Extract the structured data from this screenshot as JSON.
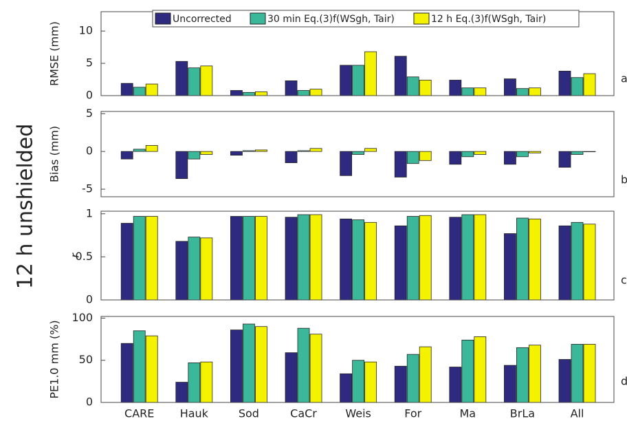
{
  "row_label": "12 h  unshielded",
  "chart_data": [
    {
      "type": "bar",
      "ylabel": "RMSE (mm)",
      "annotation": "a",
      "ylim": [
        0,
        13
      ],
      "yticks": [
        0,
        5,
        10
      ],
      "legend": "top",
      "series": [
        {
          "name": "Uncorrected",
          "color": "#2e2a80",
          "values": [
            1.9,
            5.3,
            0.8,
            2.3,
            4.7,
            6.1,
            2.4,
            2.6,
            3.8
          ]
        },
        {
          "name": "30 min Eq.(3)f(WSgh, Tair)",
          "color": "#3bb89a",
          "values": [
            1.3,
            4.3,
            0.5,
            0.8,
            4.7,
            2.9,
            1.2,
            1.1,
            2.8
          ]
        },
        {
          "name": "12 h  Eq.(3)f(WSgh, Tair)",
          "color": "#f5f200",
          "values": [
            1.8,
            4.6,
            0.6,
            1.0,
            6.8,
            2.4,
            1.2,
            1.2,
            3.4
          ]
        }
      ]
    },
    {
      "type": "bar",
      "ylabel": "Bias (mm)",
      "annotation": "b",
      "ylim": [
        -6,
        5.3
      ],
      "yticks": [
        -5,
        0,
        5
      ],
      "series": [
        {
          "color": "#2e2a80",
          "values": [
            -1.0,
            -3.6,
            -0.5,
            -1.5,
            -3.2,
            -3.4,
            -1.7,
            -1.7,
            -2.1
          ]
        },
        {
          "color": "#3bb89a",
          "values": [
            0.3,
            -1.0,
            0.1,
            0.1,
            -0.4,
            -1.6,
            -0.7,
            -0.7,
            -0.4
          ]
        },
        {
          "color": "#f5f200",
          "values": [
            0.8,
            -0.4,
            0.2,
            0.4,
            0.4,
            -1.2,
            -0.4,
            -0.2,
            0.0
          ]
        }
      ]
    },
    {
      "type": "bar",
      "ylabel": "r",
      "annotation": "c",
      "ylim": [
        0,
        1.03
      ],
      "yticks": [
        0,
        0.5,
        1
      ],
      "series": [
        {
          "color": "#2e2a80",
          "values": [
            0.89,
            0.68,
            0.97,
            0.96,
            0.94,
            0.86,
            0.96,
            0.77,
            0.86
          ]
        },
        {
          "color": "#3bb89a",
          "values": [
            0.97,
            0.73,
            0.97,
            0.99,
            0.93,
            0.97,
            0.99,
            0.95,
            0.9
          ]
        },
        {
          "color": "#f5f200",
          "values": [
            0.97,
            0.72,
            0.97,
            0.99,
            0.9,
            0.98,
            0.99,
            0.94,
            0.88
          ]
        }
      ]
    },
    {
      "type": "bar",
      "ylabel": "PE1.0 mm (%)",
      "annotation": "d",
      "ylim": [
        0,
        102
      ],
      "yticks": [
        0,
        50,
        100
      ],
      "categories": [
        "CARE",
        "Hauk",
        "Sod",
        "CaCr",
        "Weis",
        "For",
        "Ma",
        "BrLa",
        "All"
      ],
      "series": [
        {
          "color": "#2e2a80",
          "values": [
            70,
            24,
            86,
            59,
            34,
            43,
            42,
            44,
            51
          ]
        },
        {
          "color": "#3bb89a",
          "values": [
            85,
            47,
            93,
            88,
            50,
            57,
            74,
            65,
            69
          ]
        },
        {
          "color": "#f5f200",
          "values": [
            79,
            48,
            90,
            81,
            48,
            66,
            78,
            68,
            69
          ]
        }
      ]
    }
  ]
}
